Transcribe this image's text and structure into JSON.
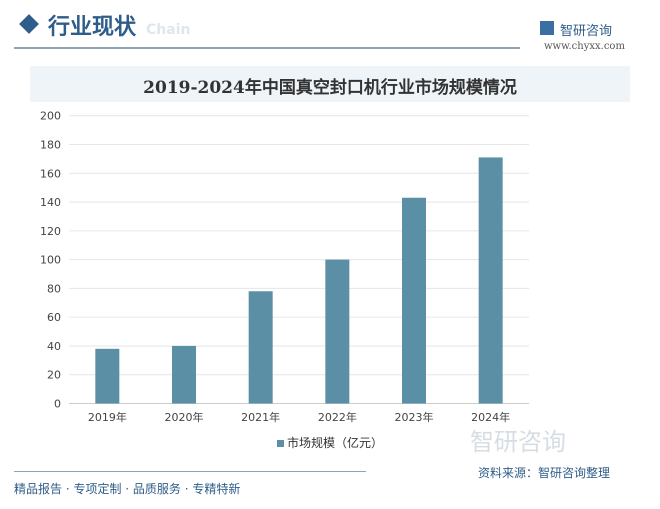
{
  "header": {
    "title": "行业现状",
    "subtitle": "Chain",
    "logo_text": "智研咨询",
    "logo_url": "www.chyxx.com"
  },
  "footer": {
    "tagline": "精品报告 · 专项定制 · 品质服务 · 专精特新",
    "source": "资料来源：智研咨询整理",
    "watermark": "智研咨询"
  },
  "colors": {
    "bar": "#5b8fa6",
    "accent": "#2f5d8a"
  },
  "chart_data": {
    "type": "bar",
    "title": "2019-2024年中国真空封口机行业市场规模情况",
    "categories": [
      "2019年",
      "2020年",
      "2021年",
      "2022年",
      "2023年",
      "2024年"
    ],
    "series": [
      {
        "name": "市场规模（亿元）",
        "values": [
          38,
          40,
          78,
          100,
          143,
          171
        ]
      }
    ],
    "ylim": [
      0,
      200
    ],
    "yticks": [
      0,
      20,
      40,
      60,
      80,
      100,
      120,
      140,
      160,
      180,
      200
    ],
    "grid": true,
    "legend": "bottom"
  }
}
